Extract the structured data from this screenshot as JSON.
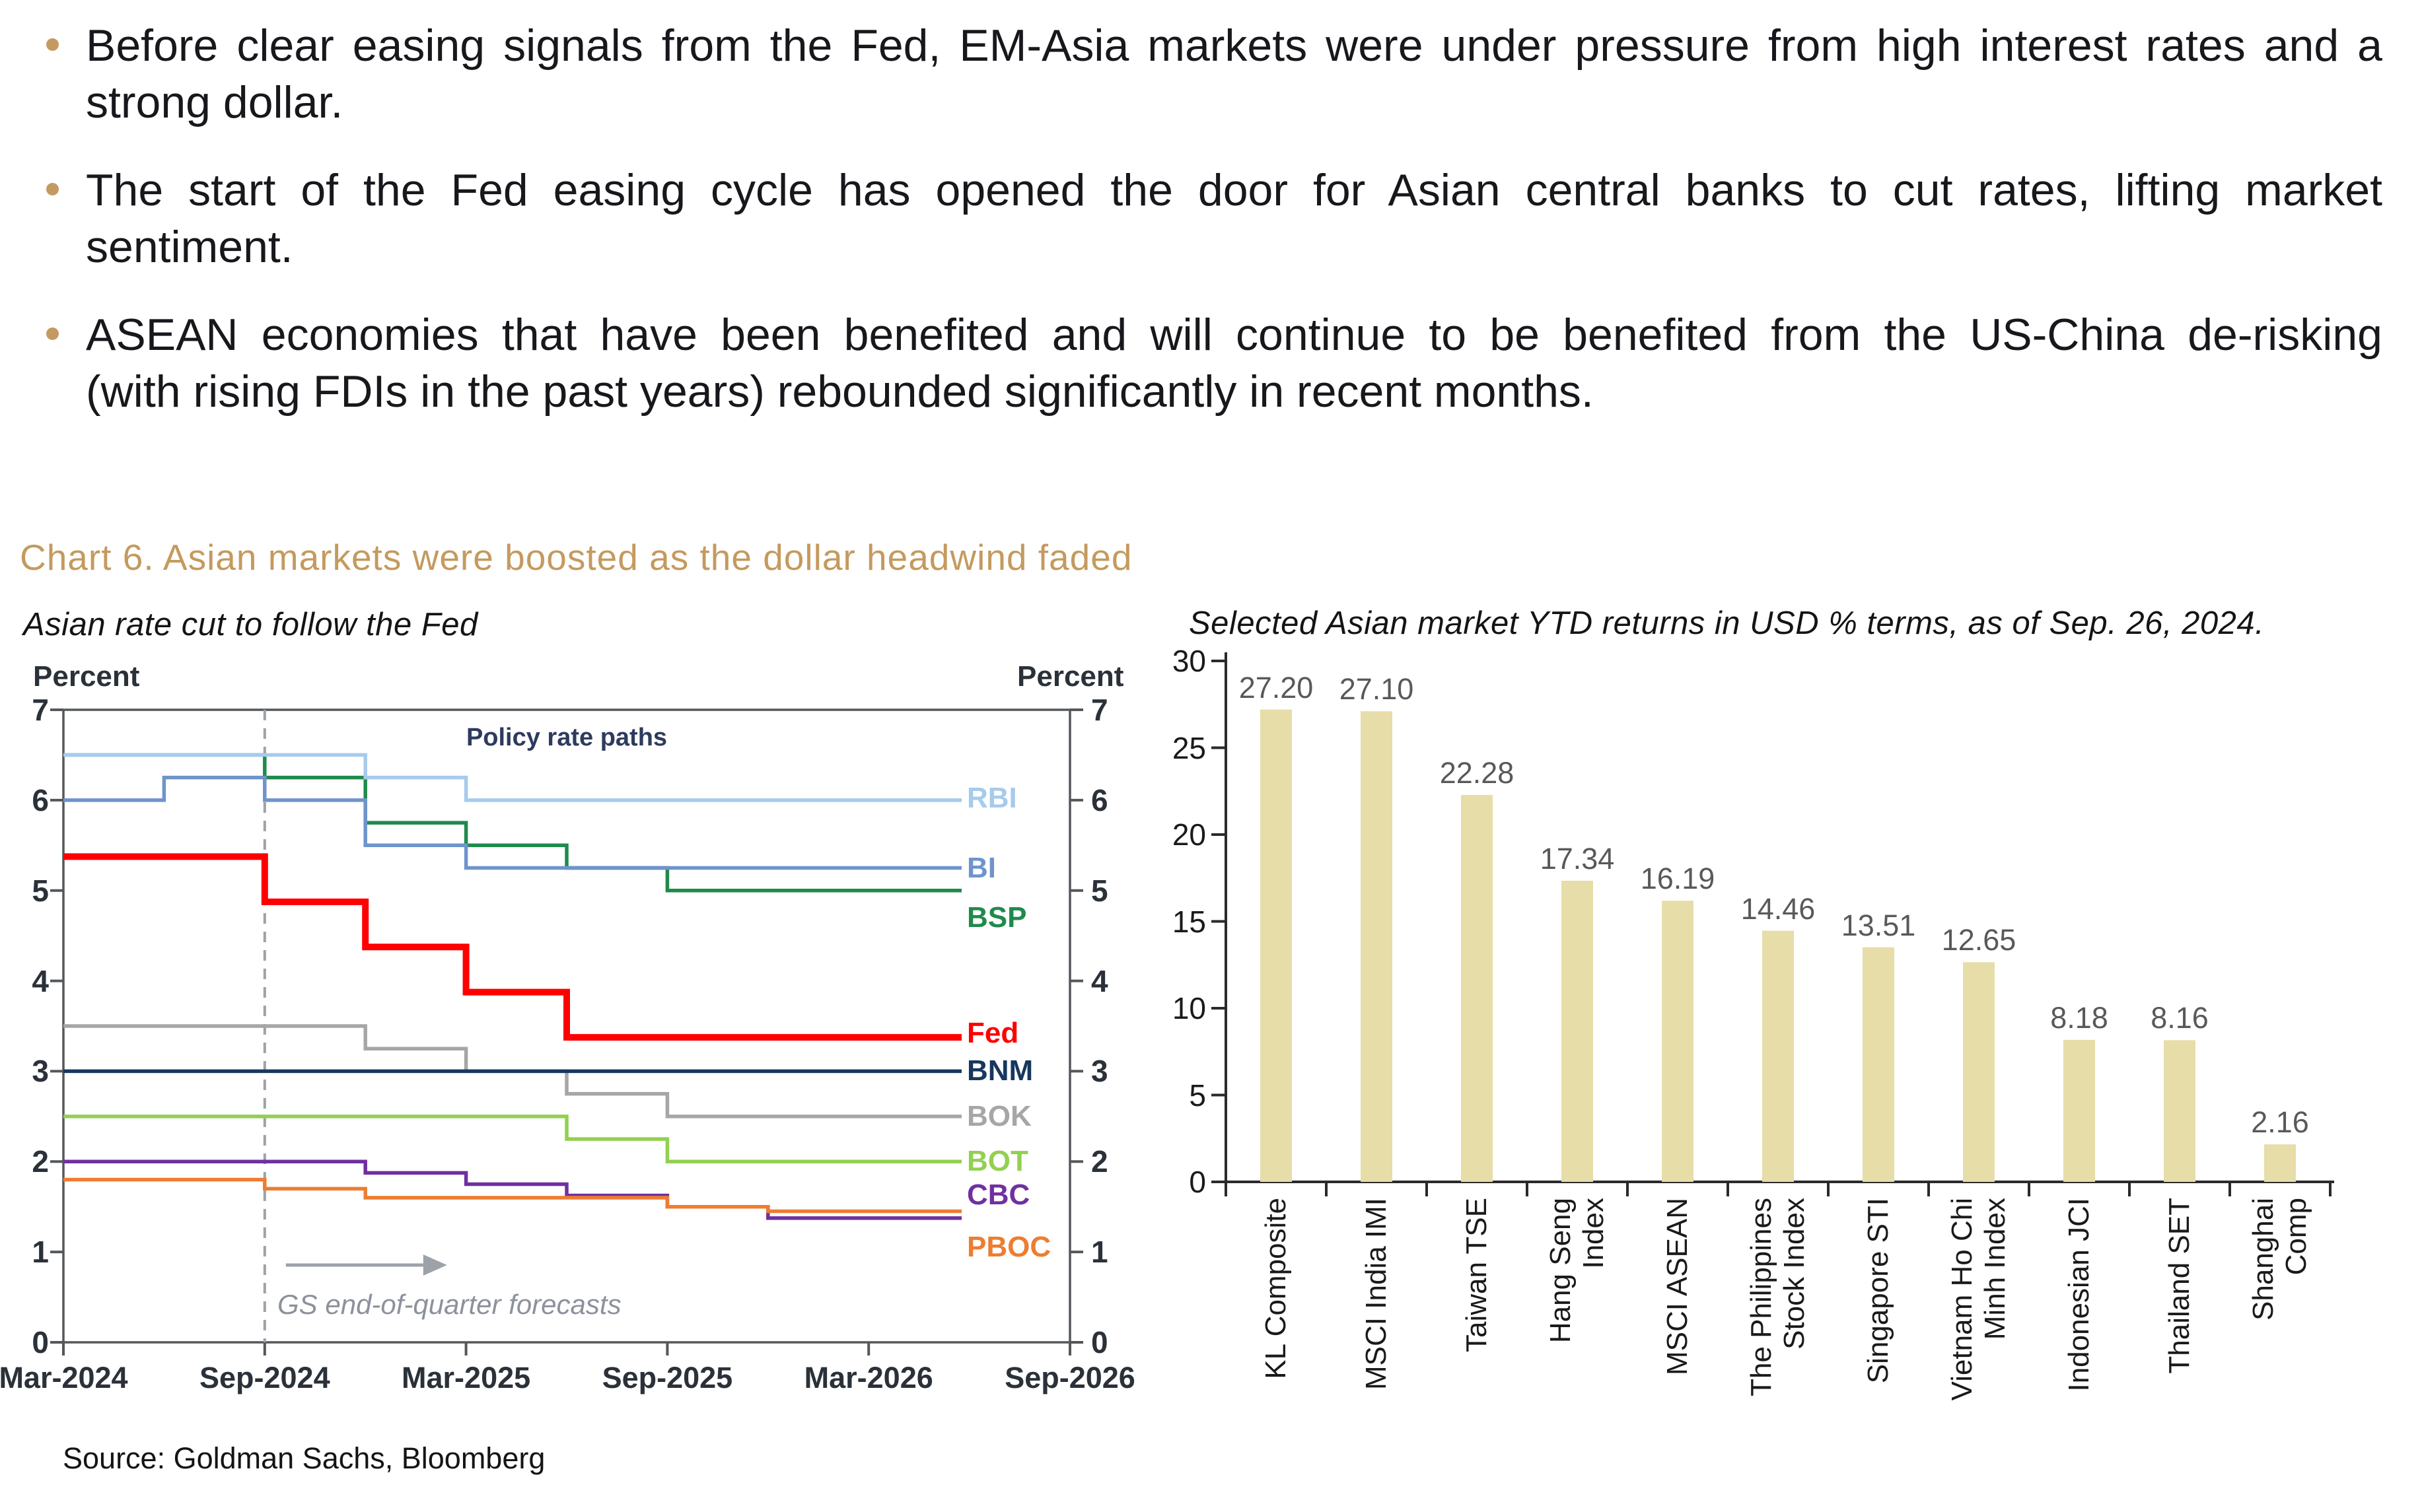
{
  "bullets": [
    {
      "lines": [
        "Before clear easing signals from the Fed, EM-Asia markets were under pressure from high interest rates and a",
        "strong dollar."
      ]
    },
    {
      "lines": [
        "The start of the Fed easing cycle has opened the door for Asian central banks to cut rates, lifting market",
        "sentiment."
      ]
    },
    {
      "lines": [
        "ASEAN economies that have been benefited and will continue to be benefited from the US-China de-risking",
        "(with rising FDIs in the past years) rebounded significantly in recent months."
      ]
    }
  ],
  "chart_section": {
    "heading": "Chart 6. Asian markets were boosted as the dollar headwind faded",
    "source": "Source: Goldman Sachs, Bloomberg"
  },
  "chart_data": [
    {
      "type": "line",
      "title": "Asian rate cut to follow the Fed",
      "ylabel_left": "Percent",
      "ylabel_right": "Percent",
      "ylim": [
        0,
        7
      ],
      "yticks": [
        0,
        1,
        2,
        3,
        4,
        5,
        6,
        7
      ],
      "x": [
        "Mar-2024",
        "Jun-2024",
        "Sep-2024",
        "Dec-2024",
        "Mar-2025",
        "Jun-2025",
        "Sep-2025",
        "Dec-2025",
        "Mar-2026",
        "Jun-2026",
        "Sep-2026"
      ],
      "xticks": [
        "Mar-2024",
        "Sep-2024",
        "Mar-2025",
        "Sep-2025",
        "Mar-2026",
        "Sep-2026"
      ],
      "step": true,
      "annotations": {
        "inner_title": "Policy rate paths",
        "forecast_divider_x": "Sep-2024",
        "forecast_note": "GS end-of-quarter forecasts"
      },
      "series": [
        {
          "name": "BSP",
          "color": "#1f8a4c",
          "bold": false,
          "values": [
            6.5,
            6.5,
            6.25,
            5.75,
            5.5,
            5.25,
            5.0,
            5.0,
            5.0,
            5.0,
            5.0
          ]
        },
        {
          "name": "RBI",
          "color": "#a6cbec",
          "bold": false,
          "values": [
            6.5,
            6.5,
            6.5,
            6.25,
            6.0,
            6.0,
            6.0,
            6.0,
            6.0,
            6.0,
            6.0
          ]
        },
        {
          "name": "BI",
          "color": "#6f94cb",
          "bold": false,
          "values": [
            6.0,
            6.25,
            6.0,
            5.5,
            5.25,
            5.25,
            5.25,
            5.25,
            5.25,
            5.25,
            5.25
          ]
        },
        {
          "name": "BOK",
          "color": "#a6a6a6",
          "bold": false,
          "values": [
            3.5,
            3.5,
            3.5,
            3.25,
            3.0,
            2.75,
            2.5,
            2.5,
            2.5,
            2.5,
            2.5
          ]
        },
        {
          "name": "BOT",
          "color": "#92d050",
          "bold": false,
          "values": [
            2.5,
            2.5,
            2.5,
            2.5,
            2.5,
            2.25,
            2.0,
            2.0,
            2.0,
            2.0,
            2.0
          ]
        },
        {
          "name": "CBC",
          "color": "#7030a0",
          "bold": false,
          "values": [
            2.0,
            2.0,
            2.0,
            1.875,
            1.75,
            1.625,
            1.5,
            1.375,
            1.375,
            1.375,
            1.375
          ]
        },
        {
          "name": "PBOC",
          "color": "#ed7d31",
          "bold": false,
          "values": [
            1.8,
            1.8,
            1.7,
            1.6,
            1.6,
            1.6,
            1.5,
            1.45,
            1.45,
            1.45,
            1.45
          ]
        },
        {
          "name": "BNM",
          "color": "#17375e",
          "bold": true,
          "values": [
            3.0,
            3.0,
            3.0,
            3.0,
            3.0,
            3.0,
            3.0,
            3.0,
            3.0,
            3.0,
            3.0
          ]
        },
        {
          "name": "Fed",
          "color": "#fe0000",
          "bold": true,
          "values": [
            5.375,
            5.375,
            4.875,
            4.375,
            3.875,
            3.375,
            3.375,
            3.375,
            3.375,
            3.375,
            3.375
          ]
        }
      ]
    },
    {
      "type": "bar",
      "title": "Selected Asian market YTD returns in USD % terms, as of Sep. 26, 2024.",
      "categories": [
        "KL Composite",
        "MSCI India IMI",
        "Taiwan TSE",
        "Hang Seng\nIndex",
        "MSCI ASEAN",
        "The Philippines\nStock Index",
        "Singapore STI",
        "Vietnam Ho Chi\nMinh Index",
        "Indonesian JCI",
        "Thailand SET",
        "Shanghai\nComp"
      ],
      "values": [
        27.2,
        27.1,
        22.28,
        17.34,
        16.19,
        14.46,
        13.51,
        12.65,
        8.18,
        8.16,
        2.16
      ],
      "value_labels": [
        "27.20",
        "27.10",
        "22.28",
        "17.34",
        "16.19",
        "14.46",
        "13.51",
        "12.65",
        "8.18",
        "8.16",
        "2.16"
      ],
      "ylim": [
        0,
        30
      ],
      "yticks": [
        0,
        5,
        10,
        15,
        20,
        25,
        30
      ],
      "bar_color": "#e7dda8"
    }
  ],
  "colors": {
    "accent_gold": "#c49a5e",
    "bullet_dot": "#c49a62",
    "body_text": "#17171c",
    "axis_line": "#54585c",
    "bar_axis": "#2a2a2a",
    "dashed_divider": "#9da2a8",
    "forecast_note_gray": "#8c929c",
    "value_label_gray": "#595959",
    "inner_title_navy": "#2e3b5e"
  }
}
